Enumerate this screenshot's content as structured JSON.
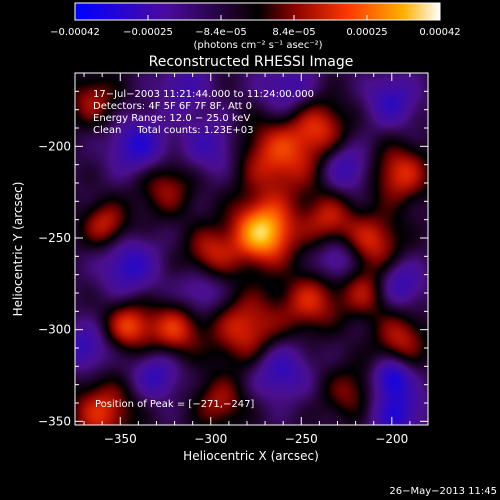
{
  "chart_data": {
    "type": "heatmap",
    "title": "Reconstructed RHESSI Image",
    "xlabel": "Heliocentric X (arcsec)",
    "ylabel": "Heliocentric Y (arcsec)",
    "xlim": [
      -375,
      -180
    ],
    "ylim": [
      -352,
      -160
    ],
    "xticks": [
      -350,
      -300,
      -250,
      -200
    ],
    "xtick_labels": [
      "−350",
      "−300",
      "−250",
      "−200"
    ],
    "yticks": [
      -350,
      -300,
      -250,
      -200
    ],
    "ytick_labels": [
      "−350",
      "−300",
      "−250",
      "−200"
    ],
    "colorbar": {
      "range": [
        -0.00042,
        0.00042
      ],
      "tick_labels": [
        "−0.00042",
        "−0.00025",
        "−8.4e−05",
        "8.4e−05",
        "0.00025",
        "0.00042"
      ],
      "unit_label": "(photons cm⁻² s⁻¹ asec⁻²)"
    },
    "annotations": [
      "17−Jul−2003 11:21:44.000 to 11:24:00.000",
      "Detectors: 4F 5F 6F 7F 8F, Att 0",
      "Energy Range: 12.0 − 25.0 keV",
      "Clean     Total counts: 1.23E+03"
    ],
    "peak_label": "Position of Peak = [−271,−247]",
    "peak": {
      "x": -271,
      "y": -247,
      "value": 0.00042
    },
    "footer_timestamp": "26−May−2013 11:45",
    "blobs": [
      {
        "x": -271,
        "y": -247,
        "v": 1.0,
        "s": 12
      },
      {
        "x": -262,
        "y": -205,
        "v": 0.6,
        "s": 16
      },
      {
        "x": -280,
        "y": -300,
        "v": 0.55,
        "s": 14
      },
      {
        "x": -245,
        "y": -285,
        "v": 0.5,
        "s": 11
      },
      {
        "x": -320,
        "y": -300,
        "v": 0.55,
        "s": 10
      },
      {
        "x": -345,
        "y": -298,
        "v": 0.6,
        "s": 9
      },
      {
        "x": -300,
        "y": -258,
        "v": 0.45,
        "s": 10
      },
      {
        "x": -235,
        "y": -240,
        "v": 0.45,
        "s": 10
      },
      {
        "x": -195,
        "y": -215,
        "v": 0.55,
        "s": 11
      },
      {
        "x": -210,
        "y": -252,
        "v": 0.5,
        "s": 11
      },
      {
        "x": -358,
        "y": -243,
        "v": 0.5,
        "s": 9
      },
      {
        "x": -325,
        "y": -222,
        "v": 0.4,
        "s": 11
      },
      {
        "x": -365,
        "y": -175,
        "v": 0.4,
        "s": 10
      },
      {
        "x": -360,
        "y": -345,
        "v": 0.55,
        "s": 12
      },
      {
        "x": -295,
        "y": -340,
        "v": 0.4,
        "s": 10
      },
      {
        "x": -195,
        "y": -305,
        "v": 0.45,
        "s": 10
      },
      {
        "x": -215,
        "y": -280,
        "v": 0.4,
        "s": 10
      },
      {
        "x": -240,
        "y": -188,
        "v": 0.45,
        "s": 11
      },
      {
        "x": -222,
        "y": -335,
        "v": 0.35,
        "s": 11
      },
      {
        "x": -340,
        "y": -200,
        "v": -0.55,
        "s": 11
      },
      {
        "x": -345,
        "y": -265,
        "v": -0.5,
        "s": 11
      },
      {
        "x": -370,
        "y": -310,
        "v": -0.45,
        "s": 9
      },
      {
        "x": -300,
        "y": -200,
        "v": -0.4,
        "s": 11
      },
      {
        "x": -225,
        "y": -212,
        "v": -0.45,
        "s": 9
      },
      {
        "x": -198,
        "y": -345,
        "v": -0.55,
        "s": 11
      },
      {
        "x": -200,
        "y": -326,
        "v": -0.6,
        "s": 7
      },
      {
        "x": -262,
        "y": -322,
        "v": -0.5,
        "s": 11
      },
      {
        "x": -330,
        "y": -325,
        "v": -0.45,
        "s": 9
      },
      {
        "x": -258,
        "y": -170,
        "v": -0.4,
        "s": 12
      },
      {
        "x": -200,
        "y": -175,
        "v": -0.45,
        "s": 10
      },
      {
        "x": -305,
        "y": -280,
        "v": -0.35,
        "s": 9
      },
      {
        "x": -230,
        "y": -262,
        "v": -0.4,
        "s": 8
      },
      {
        "x": -315,
        "y": -168,
        "v": -0.35,
        "s": 10
      },
      {
        "x": -195,
        "y": -275,
        "v": -0.45,
        "s": 9
      }
    ]
  }
}
